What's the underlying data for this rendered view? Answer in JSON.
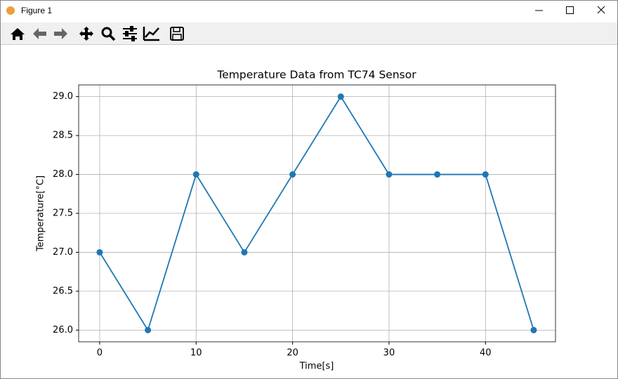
{
  "window": {
    "title": "Figure 1"
  },
  "chart_data": {
    "type": "line",
    "title": "Temperature Data from TC74 Sensor",
    "x_label": "Time[s]",
    "y_label": "Temperature[°C]",
    "x": [
      0,
      5,
      10,
      15,
      20,
      25,
      30,
      35,
      40,
      45
    ],
    "values": [
      27,
      26,
      28,
      27,
      28,
      29,
      28,
      28,
      28,
      26
    ],
    "color": "#1f77b4",
    "marker": "o",
    "xlim": [
      -2.18,
      47.26
    ],
    "xticks": [
      0,
      10,
      20,
      30,
      40
    ],
    "ylim": [
      25.85,
      29.15
    ],
    "yticks": [
      {
        "value": 26,
        "label": "26.0"
      },
      {
        "value": 26.5,
        "label": "26.5"
      },
      {
        "value": 27,
        "label": "27.0"
      },
      {
        "value": 27.5,
        "label": "27.5"
      },
      {
        "value": 28,
        "label": "28.0"
      },
      {
        "value": 28.5,
        "label": "28.5"
      },
      {
        "value": 29,
        "label": "29.0"
      }
    ],
    "grid": true
  }
}
